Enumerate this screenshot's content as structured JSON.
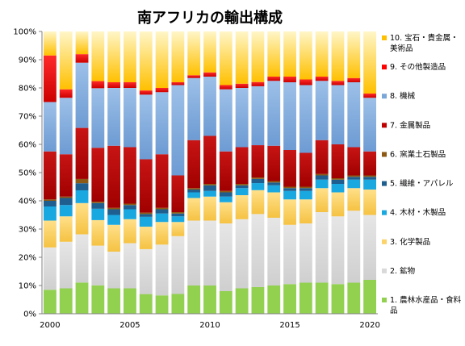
{
  "chart_data": {
    "type": "bar",
    "stacked": true,
    "percent": true,
    "title": "南アフリカの輸出構成",
    "xlabel": "",
    "ylabel": "",
    "x": [
      2000,
      2001,
      2002,
      2003,
      2004,
      2005,
      2006,
      2007,
      2008,
      2009,
      2010,
      2011,
      2012,
      2013,
      2014,
      2015,
      2016,
      2017,
      2018,
      2019,
      2020
    ],
    "x_tick_labels": [
      "2000",
      "2005",
      "2010",
      "2015",
      "2020"
    ],
    "x_tick_values": [
      2000,
      2005,
      2010,
      2015,
      2020
    ],
    "y_tick_labels": [
      "0%",
      "10%",
      "20%",
      "30%",
      "40%",
      "50%",
      "60%",
      "70%",
      "80%",
      "90%",
      "100%"
    ],
    "ylim": [
      0,
      100
    ],
    "grid": false,
    "legend_position": "right",
    "series": [
      {
        "name": "1. 農林水産品・食料品",
        "color": "#92d050",
        "values": [
          8.5,
          9,
          11,
          10,
          9,
          9,
          7,
          6.5,
          7,
          10,
          10,
          8,
          9,
          9.5,
          10,
          10.5,
          11,
          11,
          10.5,
          11,
          12
        ]
      },
      {
        "name": "2. 鉱物",
        "color": "#d9d9d9",
        "values": [
          15,
          16.5,
          17,
          14,
          13,
          16,
          16,
          18,
          20.5,
          23,
          23,
          24,
          24.5,
          26,
          24,
          21,
          21,
          25,
          24,
          25.5,
          23
        ]
      },
      {
        "name": "3. 化学製品",
        "color": "#fcd36a",
        "values": [
          9.5,
          9,
          11,
          9,
          9.5,
          8.5,
          8,
          8,
          5,
          8,
          8.5,
          7.5,
          8.5,
          8.5,
          9,
          9,
          8.5,
          8.5,
          8.5,
          8,
          9
        ]
      },
      {
        "name": "4. 木材・木製品",
        "color": "#1aa8e0",
        "values": [
          5,
          4,
          4.5,
          4,
          3.5,
          3.5,
          3.5,
          3,
          2,
          2,
          2,
          2,
          2.5,
          2.5,
          2.5,
          3,
          3,
          3,
          3,
          3,
          3.5
        ]
      },
      {
        "name": "5. 繊維・アパレル",
        "color": "#1f5f8f",
        "values": [
          2,
          2.5,
          2.5,
          2,
          2,
          1.5,
          1,
          1.5,
          1,
          1,
          2,
          1.5,
          1,
          1.5,
          1,
          1,
          1,
          1.5,
          1.5,
          1,
          1
        ]
      },
      {
        "name": "6. 窯業土石製品",
        "color": "#8c5a14",
        "values": [
          0.5,
          0.5,
          1.5,
          0.5,
          0.5,
          0.5,
          0.5,
          0.5,
          0.5,
          0.5,
          0.5,
          0.5,
          0.5,
          0.5,
          0.5,
          0.5,
          0.5,
          0.5,
          0.5,
          0.5,
          0.5
        ]
      },
      {
        "name": "7. 金属製品",
        "color": "#c00000",
        "values": [
          17,
          15,
          18,
          19,
          22,
          20,
          19,
          19,
          13,
          17,
          17,
          14,
          13,
          11.5,
          12.5,
          13,
          12,
          12,
          12,
          10,
          8.5
        ]
      },
      {
        "name": "8. 機械",
        "color": "#7aa7d8",
        "values": [
          17.5,
          20,
          23,
          21,
          20.5,
          21,
          23,
          22,
          32,
          22,
          21,
          22,
          21,
          21,
          23,
          24,
          24,
          21,
          21,
          23,
          19
        ]
      },
      {
        "name": "9. その他製造品",
        "color": "#ff0000",
        "values": [
          16.5,
          3,
          3,
          2.5,
          2,
          2,
          1.5,
          1.5,
          1,
          1,
          1.5,
          1.5,
          1.5,
          1.5,
          1.5,
          2,
          2,
          1.5,
          1.5,
          1.5,
          1.5
        ]
      },
      {
        "name": "10. 宝石・貴金属・美術品",
        "color": "#ffc000",
        "values": [
          8.5,
          20.5,
          8,
          17.5,
          18,
          18,
          21,
          20,
          18,
          15.5,
          14.5,
          19,
          18.5,
          18,
          16,
          16,
          17,
          16,
          17.5,
          16.5,
          22
        ]
      }
    ]
  }
}
